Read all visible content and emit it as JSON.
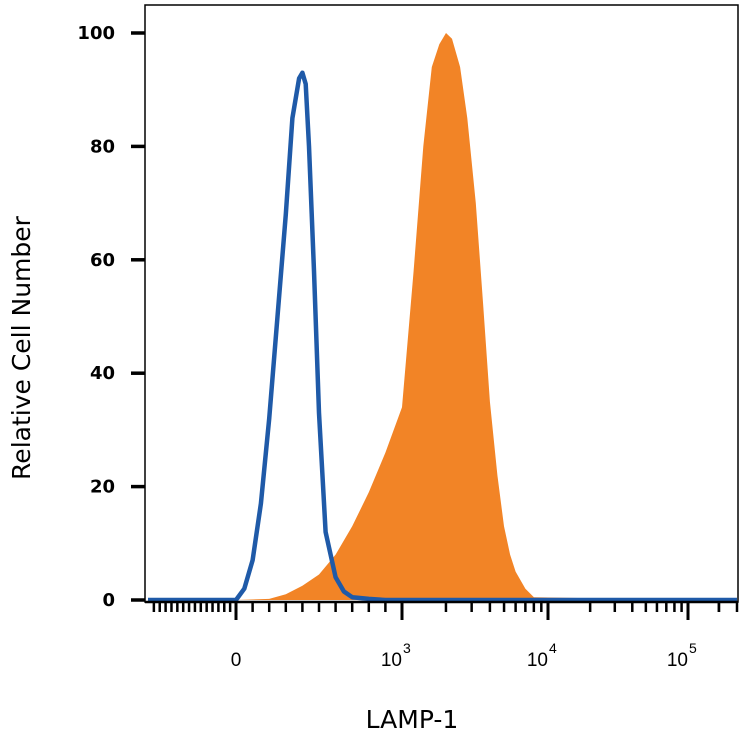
{
  "chart_data": {
    "type": "area",
    "xlabel": "LAMP-1",
    "ylabel": "Relative Cell Number",
    "ylim": [
      0,
      100
    ],
    "x_scale": "biexponential",
    "y_ticks": [
      {
        "label": "0",
        "value": 0
      },
      {
        "label": "20",
        "value": 20
      },
      {
        "label": "40",
        "value": 40
      },
      {
        "label": "60",
        "value": 60
      },
      {
        "label": "80",
        "value": 80
      },
      {
        "label": "100",
        "value": 100
      }
    ],
    "x_ticks": [
      {
        "label": "0",
        "value": 0,
        "sup": ""
      },
      {
        "label": "10",
        "value": 1000,
        "sup": "3"
      },
      {
        "label": "10",
        "value": 10000,
        "sup": "4"
      },
      {
        "label": "10",
        "value": 100000,
        "sup": "5"
      }
    ],
    "grid": false,
    "legend": "none",
    "series": [
      {
        "style": "outline",
        "color": "#1f5aa8",
        "x": [
          -1500,
          0,
          50,
          100,
          150,
          200,
          250,
          300,
          340,
          380,
          400,
          420,
          440,
          470,
          500,
          540,
          600,
          650,
          700,
          800,
          900,
          1000,
          2000,
          10000,
          100000,
          300000
        ],
        "y": [
          0,
          0,
          2,
          7,
          17,
          32,
          50,
          68,
          85,
          92,
          93,
          91,
          80,
          58,
          33,
          12,
          4,
          1.5,
          0.5,
          0.2,
          0,
          0,
          0,
          0,
          0,
          0
        ]
      },
      {
        "style": "filled",
        "color": "#f28426",
        "x": [
          -1500,
          0,
          200,
          300,
          400,
          500,
          600,
          700,
          800,
          900,
          1000,
          1200,
          1400,
          1600,
          1800,
          2000,
          2200,
          2500,
          2800,
          3200,
          3600,
          4000,
          4500,
          5000,
          5500,
          6000,
          7000,
          8000,
          100000,
          300000
        ],
        "y": [
          0,
          0,
          0.2,
          1,
          2.5,
          4.5,
          8,
          13,
          19,
          26,
          34,
          58,
          80,
          94,
          98,
          100,
          99,
          94,
          85,
          70,
          52,
          35,
          22,
          13,
          8,
          5,
          2,
          0.5,
          0,
          0
        ]
      }
    ]
  }
}
